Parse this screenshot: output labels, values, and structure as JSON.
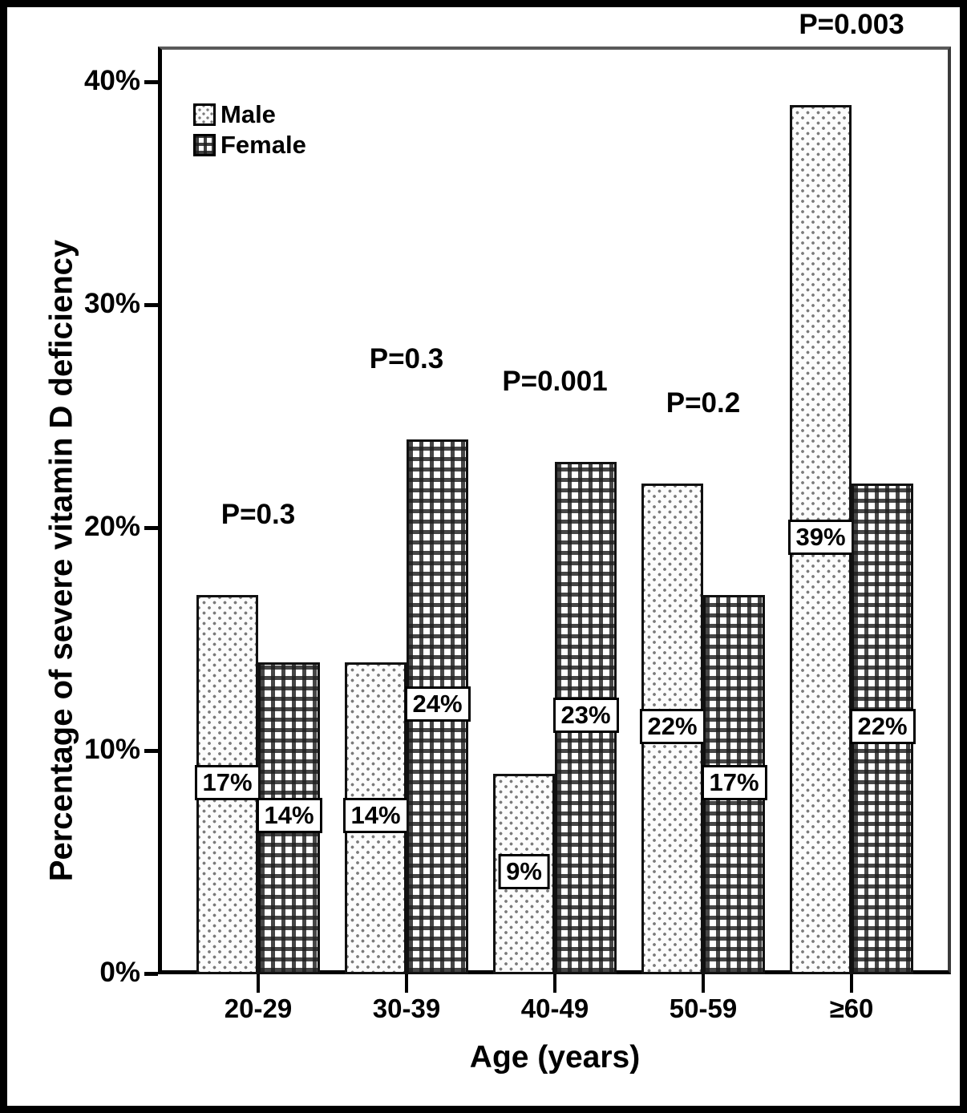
{
  "chart_data": {
    "type": "bar",
    "title": "",
    "xlabel": "Age (years)",
    "ylabel": "Percentage of severe vitamin D deficiency",
    "categories": [
      "20-29",
      "30-39",
      "40-49",
      "50-59",
      "≥60"
    ],
    "series": [
      {
        "name": "Male",
        "pattern": "dots",
        "values": [
          17,
          14,
          9,
          22,
          39
        ],
        "labels": [
          "17%",
          "14%",
          "9%",
          "22%",
          "39%"
        ]
      },
      {
        "name": "Female",
        "pattern": "plaid",
        "values": [
          14,
          24,
          23,
          17,
          22
        ],
        "labels": [
          "14%",
          "24%",
          "23%",
          "17%",
          "22%"
        ]
      }
    ],
    "p_values": [
      "P=0.3",
      "P=0.3",
      "P=0.001",
      "P=0.2",
      "P=0.003"
    ],
    "y_ticks": [
      {
        "label": "0%",
        "value": 0
      },
      {
        "label": "10%",
        "value": 10
      },
      {
        "label": "20%",
        "value": 20
      },
      {
        "label": "30%",
        "value": 30
      },
      {
        "label": "40%",
        "value": 40
      }
    ],
    "ylim": [
      0,
      41.5
    ],
    "grid": false,
    "legend_position": "top-left",
    "colors": {
      "ink": "#000000",
      "background": "#ffffff"
    }
  }
}
